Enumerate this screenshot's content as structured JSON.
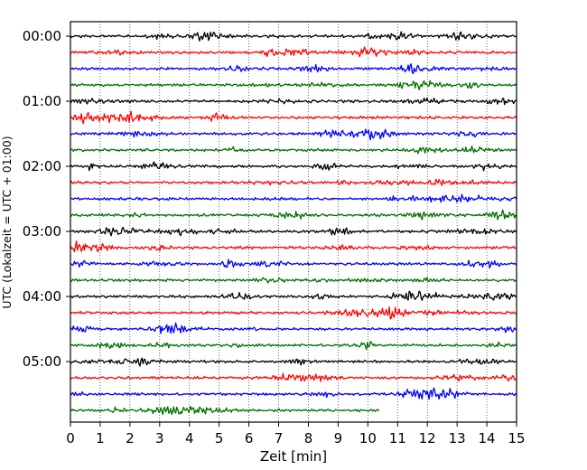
{
  "chart_data": {
    "type": "line",
    "title": "",
    "xlabel": "Zeit  [min]",
    "ylabel": "UTC (Lokalzeit = UTC + 01:00)",
    "xlim": [
      0,
      15
    ],
    "x_ticks": [
      "0",
      "1",
      "2",
      "3",
      "4",
      "5",
      "6",
      "7",
      "8",
      "9",
      "10",
      "11",
      "12",
      "13",
      "14",
      "15"
    ],
    "y_ticks": [
      "00:00",
      "01:00",
      "02:00",
      "03:00",
      "04:00",
      "05:00"
    ],
    "grid": "vertical dotted lines at each minute",
    "line_colors": [
      "#000000",
      "#ff0000",
      "#0000ff",
      "#007000"
    ],
    "trace_minutes": 15,
    "traces": [
      {
        "start": "00:00",
        "color": "#000000",
        "end_min": 15
      },
      {
        "start": "00:15",
        "color": "#ff0000",
        "end_min": 15
      },
      {
        "start": "00:30",
        "color": "#0000ff",
        "end_min": 15
      },
      {
        "start": "00:45",
        "color": "#007000",
        "end_min": 15
      },
      {
        "start": "01:00",
        "color": "#000000",
        "end_min": 15
      },
      {
        "start": "01:15",
        "color": "#ff0000",
        "end_min": 15
      },
      {
        "start": "01:30",
        "color": "#0000ff",
        "end_min": 15
      },
      {
        "start": "01:45",
        "color": "#007000",
        "end_min": 15
      },
      {
        "start": "02:00",
        "color": "#000000",
        "end_min": 15
      },
      {
        "start": "02:15",
        "color": "#ff0000",
        "end_min": 15
      },
      {
        "start": "02:30",
        "color": "#0000ff",
        "end_min": 15
      },
      {
        "start": "02:45",
        "color": "#007000",
        "end_min": 15
      },
      {
        "start": "03:00",
        "color": "#000000",
        "end_min": 15
      },
      {
        "start": "03:15",
        "color": "#ff0000",
        "end_min": 15
      },
      {
        "start": "03:30",
        "color": "#0000ff",
        "end_min": 15
      },
      {
        "start": "03:45",
        "color": "#007000",
        "end_min": 15
      },
      {
        "start": "04:00",
        "color": "#000000",
        "end_min": 15
      },
      {
        "start": "04:15",
        "color": "#ff0000",
        "end_min": 15
      },
      {
        "start": "04:30",
        "color": "#0000ff",
        "end_min": 15
      },
      {
        "start": "04:45",
        "color": "#007000",
        "end_min": 15
      },
      {
        "start": "05:00",
        "color": "#000000",
        "end_min": 15
      },
      {
        "start": "05:15",
        "color": "#ff0000",
        "end_min": 15
      },
      {
        "start": "05:30",
        "color": "#0000ff",
        "end_min": 15
      },
      {
        "start": "05:45",
        "color": "#007000",
        "end_min": 10.4
      }
    ]
  }
}
